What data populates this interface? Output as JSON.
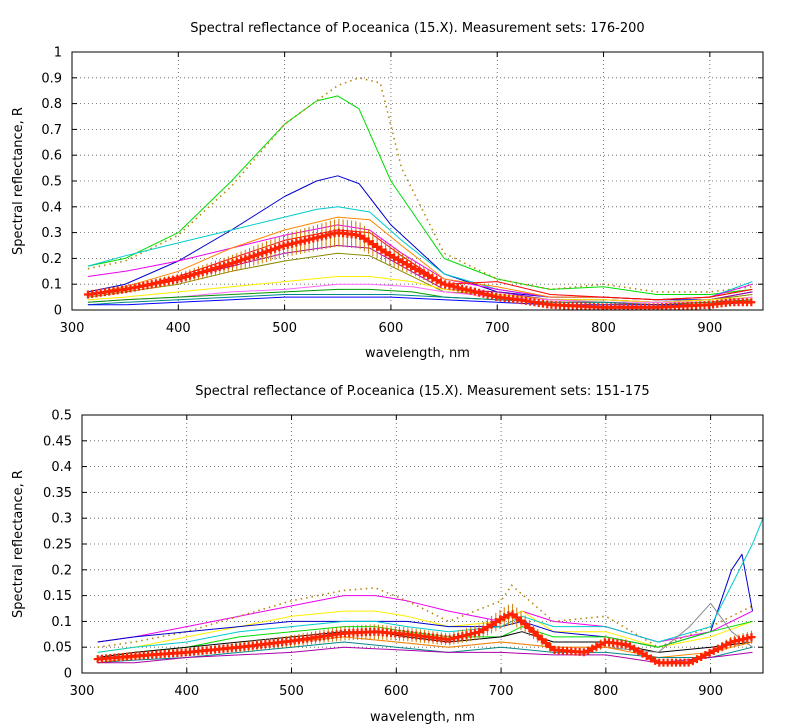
{
  "chart_data": [
    {
      "type": "line",
      "title": "Spectral reflectance of P.oceanica (15.X). Measurement sets: 176-200",
      "xlabel": "wavelength, nm",
      "ylabel": "Spectral reflectance, R",
      "xlim": [
        300,
        950
      ],
      "ylim": [
        0,
        1
      ],
      "xticks": [
        "300",
        "400",
        "500",
        "600",
        "700",
        "800",
        "900"
      ],
      "yticks": [
        "0",
        "0.1",
        "0.2",
        "0.3",
        "0.4",
        "0.5",
        "0.6",
        "0.7",
        "0.8",
        "0.9",
        "1"
      ],
      "grid": true,
      "series": [
        {
          "color": "#00dd00",
          "x": [
            315,
            350,
            400,
            450,
            500,
            530,
            550,
            570,
            600,
            650,
            700,
            750,
            800,
            850,
            900,
            940
          ],
          "y": [
            0.17,
            0.2,
            0.3,
            0.5,
            0.72,
            0.81,
            0.83,
            0.78,
            0.5,
            0.2,
            0.12,
            0.08,
            0.09,
            0.06,
            0.06,
            0.08
          ]
        },
        {
          "color": "#b8860b",
          "dotted": true,
          "x": [
            315,
            350,
            400,
            450,
            500,
            550,
            570,
            590,
            610,
            650,
            700,
            750,
            800,
            850,
            900,
            940
          ],
          "y": [
            0.16,
            0.19,
            0.29,
            0.48,
            0.72,
            0.87,
            0.9,
            0.88,
            0.55,
            0.22,
            0.12,
            0.08,
            0.1,
            0.07,
            0.07,
            0.09
          ]
        },
        {
          "color": "#0000cc",
          "x": [
            315,
            350,
            400,
            450,
            500,
            530,
            550,
            570,
            600,
            650,
            700,
            750,
            800,
            850,
            900,
            940
          ],
          "y": [
            0.07,
            0.1,
            0.19,
            0.31,
            0.44,
            0.5,
            0.52,
            0.49,
            0.33,
            0.14,
            0.07,
            0.05,
            0.05,
            0.04,
            0.04,
            0.07
          ]
        },
        {
          "color": "#00cccc",
          "x": [
            315,
            350,
            400,
            450,
            500,
            530,
            550,
            580,
            610,
            650,
            700,
            750,
            800,
            850,
            900,
            940
          ],
          "y": [
            0.17,
            0.21,
            0.26,
            0.31,
            0.36,
            0.39,
            0.4,
            0.38,
            0.27,
            0.14,
            0.08,
            0.05,
            0.05,
            0.04,
            0.05,
            0.11
          ]
        },
        {
          "color": "#ee00ee",
          "x": [
            315,
            350,
            400,
            450,
            500,
            550,
            580,
            610,
            650,
            700,
            750,
            800,
            850,
            900,
            940
          ],
          "y": [
            0.13,
            0.15,
            0.19,
            0.24,
            0.29,
            0.33,
            0.31,
            0.22,
            0.12,
            0.08,
            0.05,
            0.05,
            0.04,
            0.05,
            0.1
          ]
        },
        {
          "color": "#ff8800",
          "x": [
            315,
            350,
            400,
            450,
            500,
            550,
            580,
            610,
            650,
            700,
            750,
            800,
            850,
            900,
            940
          ],
          "y": [
            0.06,
            0.09,
            0.15,
            0.24,
            0.31,
            0.36,
            0.35,
            0.25,
            0.12,
            0.09,
            0.05,
            0.05,
            0.04,
            0.05,
            0.08
          ]
        },
        {
          "color": "#ff0000",
          "x": [
            315,
            350,
            400,
            450,
            500,
            550,
            580,
            610,
            650,
            700,
            750,
            800,
            850,
            900,
            940
          ],
          "y": [
            0.06,
            0.08,
            0.13,
            0.2,
            0.27,
            0.31,
            0.3,
            0.21,
            0.1,
            0.11,
            0.06,
            0.05,
            0.04,
            0.05,
            0.08
          ]
        },
        {
          "color": "#aa00aa",
          "x": [
            315,
            350,
            400,
            450,
            500,
            550,
            580,
            610,
            650,
            700,
            750,
            800,
            850,
            900,
            940
          ],
          "y": [
            0.06,
            0.08,
            0.12,
            0.17,
            0.22,
            0.25,
            0.24,
            0.17,
            0.08,
            0.07,
            0.04,
            0.04,
            0.03,
            0.04,
            0.07
          ]
        },
        {
          "color": "#888800",
          "x": [
            315,
            350,
            400,
            450,
            500,
            550,
            580,
            610,
            650,
            700,
            750,
            800,
            850,
            900,
            940
          ],
          "y": [
            0.05,
            0.07,
            0.1,
            0.15,
            0.19,
            0.22,
            0.21,
            0.15,
            0.07,
            0.06,
            0.04,
            0.04,
            0.03,
            0.04,
            0.06
          ]
        },
        {
          "color": "#ffee00",
          "x": [
            315,
            350,
            400,
            450,
            500,
            550,
            580,
            620,
            650,
            700,
            750,
            800,
            850,
            900,
            940
          ],
          "y": [
            0.04,
            0.05,
            0.07,
            0.09,
            0.11,
            0.13,
            0.13,
            0.11,
            0.08,
            0.06,
            0.04,
            0.04,
            0.03,
            0.04,
            0.05
          ]
        },
        {
          "color": "#ff66ff",
          "x": [
            315,
            350,
            400,
            450,
            500,
            550,
            580,
            620,
            650,
            700,
            750,
            800,
            850,
            900,
            940
          ],
          "y": [
            0.03,
            0.04,
            0.05,
            0.07,
            0.08,
            0.1,
            0.1,
            0.09,
            0.07,
            0.05,
            0.04,
            0.03,
            0.03,
            0.03,
            0.05
          ]
        },
        {
          "color": "#009900",
          "x": [
            315,
            350,
            400,
            450,
            500,
            550,
            580,
            620,
            650,
            700,
            750,
            800,
            850,
            900,
            940
          ],
          "y": [
            0.03,
            0.04,
            0.05,
            0.06,
            0.07,
            0.08,
            0.08,
            0.07,
            0.05,
            0.04,
            0.03,
            0.03,
            0.02,
            0.03,
            0.04
          ]
        },
        {
          "color": "#008888",
          "x": [
            315,
            350,
            400,
            450,
            500,
            550,
            600,
            650,
            700,
            750,
            800,
            850,
            900,
            940
          ],
          "y": [
            0.02,
            0.03,
            0.04,
            0.05,
            0.06,
            0.06,
            0.06,
            0.05,
            0.04,
            0.03,
            0.03,
            0.02,
            0.02,
            0.03
          ]
        },
        {
          "color": "#0000ff",
          "x": [
            315,
            350,
            400,
            450,
            500,
            550,
            600,
            650,
            700,
            750,
            800,
            850,
            900,
            940
          ],
          "y": [
            0.02,
            0.02,
            0.03,
            0.04,
            0.05,
            0.05,
            0.05,
            0.04,
            0.03,
            0.02,
            0.02,
            0.02,
            0.02,
            0.03
          ]
        },
        {
          "color": "#ff2200",
          "mean": true,
          "x": [
            315,
            350,
            400,
            450,
            500,
            530,
            550,
            570,
            600,
            650,
            700,
            720,
            750,
            800,
            850,
            900,
            920,
            940
          ],
          "y": [
            0.06,
            0.08,
            0.12,
            0.18,
            0.25,
            0.28,
            0.3,
            0.29,
            0.21,
            0.1,
            0.05,
            0.04,
            0.02,
            0.01,
            0.01,
            0.02,
            0.03,
            0.03
          ]
        }
      ]
    },
    {
      "type": "line",
      "title": "Spectral reflectance of P.oceanica (15.X). Measurement sets: 151-175",
      "xlabel": "wavelength, nm",
      "ylabel": "Spectral reflectance, R",
      "xlim": [
        300,
        950
      ],
      "ylim": [
        0,
        0.5
      ],
      "xticks": [
        "300",
        "400",
        "500",
        "600",
        "700",
        "800",
        "900"
      ],
      "yticks": [
        "0",
        "0.05",
        "0.1",
        "0.15",
        "0.2",
        "0.25",
        "0.3",
        "0.35",
        "0.4",
        "0.45",
        "0.5"
      ],
      "grid": true,
      "series": [
        {
          "color": "#ee00ee",
          "x": [
            315,
            350,
            400,
            450,
            500,
            550,
            580,
            610,
            650,
            700,
            720,
            750,
            800,
            850,
            900,
            940
          ],
          "y": [
            0.06,
            0.07,
            0.09,
            0.11,
            0.13,
            0.15,
            0.15,
            0.14,
            0.12,
            0.1,
            0.12,
            0.1,
            0.09,
            0.06,
            0.08,
            0.12
          ]
        },
        {
          "color": "#b8860b",
          "dotted": true,
          "x": [
            315,
            350,
            400,
            450,
            500,
            550,
            580,
            610,
            650,
            700,
            710,
            750,
            800,
            850,
            900,
            940
          ],
          "y": [
            0.05,
            0.06,
            0.08,
            0.11,
            0.14,
            0.16,
            0.165,
            0.14,
            0.1,
            0.14,
            0.17,
            0.1,
            0.11,
            0.05,
            0.09,
            0.13
          ]
        },
        {
          "color": "#ffee00",
          "x": [
            315,
            350,
            400,
            450,
            500,
            550,
            580,
            610,
            650,
            700,
            720,
            750,
            800,
            850,
            900,
            940
          ],
          "y": [
            0.04,
            0.05,
            0.07,
            0.09,
            0.11,
            0.12,
            0.12,
            0.11,
            0.09,
            0.1,
            0.12,
            0.08,
            0.08,
            0.05,
            0.07,
            0.1
          ]
        },
        {
          "color": "#0000cc",
          "x": [
            315,
            350,
            400,
            450,
            500,
            550,
            580,
            610,
            650,
            700,
            720,
            750,
            800,
            850,
            900,
            920,
            930,
            940
          ],
          "y": [
            0.06,
            0.07,
            0.08,
            0.09,
            0.1,
            0.1,
            0.1,
            0.1,
            0.09,
            0.09,
            0.1,
            0.08,
            0.07,
            0.05,
            0.08,
            0.2,
            0.23,
            0.12
          ]
        },
        {
          "color": "#00cccc",
          "x": [
            315,
            350,
            400,
            450,
            500,
            550,
            580,
            610,
            650,
            700,
            720,
            750,
            800,
            850,
            900,
            940,
            950
          ],
          "y": [
            0.04,
            0.05,
            0.06,
            0.08,
            0.09,
            0.1,
            0.1,
            0.09,
            0.08,
            0.09,
            0.11,
            0.09,
            0.09,
            0.06,
            0.09,
            0.25,
            0.3
          ]
        },
        {
          "color": "#00dd00",
          "x": [
            315,
            350,
            400,
            450,
            500,
            550,
            580,
            610,
            650,
            700,
            720,
            750,
            800,
            850,
            900,
            940
          ],
          "y": [
            0.03,
            0.04,
            0.05,
            0.07,
            0.08,
            0.09,
            0.09,
            0.08,
            0.07,
            0.07,
            0.09,
            0.07,
            0.07,
            0.05,
            0.08,
            0.1
          ]
        },
        {
          "color": "#000000",
          "x": [
            315,
            350,
            400,
            450,
            500,
            550,
            580,
            610,
            650,
            700,
            720,
            750,
            800,
            850,
            900,
            940
          ],
          "y": [
            0.03,
            0.04,
            0.05,
            0.06,
            0.07,
            0.08,
            0.08,
            0.07,
            0.06,
            0.07,
            0.08,
            0.06,
            0.06,
            0.04,
            0.05,
            0.06
          ]
        },
        {
          "color": "#888888",
          "x": [
            315,
            350,
            400,
            450,
            500,
            550,
            600,
            650,
            700,
            750,
            800,
            850,
            880,
            900,
            920,
            940
          ],
          "y": [
            0.03,
            0.03,
            0.04,
            0.05,
            0.06,
            0.07,
            0.06,
            0.05,
            0.06,
            0.05,
            0.05,
            0.04,
            0.09,
            0.135,
            0.08,
            0.05
          ]
        },
        {
          "color": "#ff8800",
          "x": [
            315,
            350,
            400,
            450,
            500,
            550,
            600,
            650,
            700,
            750,
            800,
            850,
            900,
            940
          ],
          "y": [
            0.02,
            0.03,
            0.04,
            0.05,
            0.06,
            0.07,
            0.06,
            0.05,
            0.06,
            0.05,
            0.05,
            0.03,
            0.04,
            0.06
          ]
        },
        {
          "color": "#008888",
          "x": [
            315,
            350,
            400,
            450,
            500,
            550,
            600,
            650,
            700,
            750,
            800,
            850,
            900,
            940
          ],
          "y": [
            0.02,
            0.025,
            0.03,
            0.04,
            0.05,
            0.06,
            0.05,
            0.04,
            0.05,
            0.04,
            0.04,
            0.03,
            0.03,
            0.05
          ]
        },
        {
          "color": "#aa00aa",
          "x": [
            315,
            350,
            400,
            450,
            500,
            550,
            600,
            650,
            700,
            750,
            800,
            850,
            900,
            940
          ],
          "y": [
            0.02,
            0.02,
            0.03,
            0.035,
            0.04,
            0.05,
            0.045,
            0.04,
            0.04,
            0.035,
            0.035,
            0.02,
            0.03,
            0.04
          ]
        },
        {
          "color": "#ff2200",
          "mean": true,
          "x": [
            315,
            350,
            400,
            450,
            500,
            550,
            580,
            610,
            650,
            680,
            700,
            710,
            720,
            750,
            780,
            800,
            820,
            850,
            880,
            900,
            920,
            940
          ],
          "y": [
            0.027,
            0.033,
            0.04,
            0.05,
            0.062,
            0.077,
            0.08,
            0.075,
            0.065,
            0.08,
            0.105,
            0.115,
            0.1,
            0.045,
            0.04,
            0.06,
            0.055,
            0.02,
            0.02,
            0.04,
            0.06,
            0.07
          ]
        }
      ]
    }
  ]
}
